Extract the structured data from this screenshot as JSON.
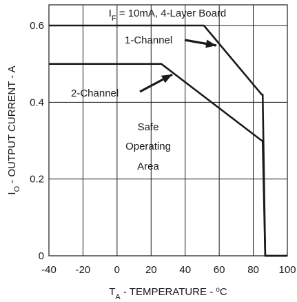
{
  "chart_data": {
    "type": "line",
    "title": "I_F = 10mA, 4-Layer Board",
    "title_parts": {
      "base": "I",
      "sub": "F",
      "rest": " = 10mA, 4-Layer Board"
    },
    "xlabel": "T_A - TEMPERATURE - ºC",
    "xlabel_parts": {
      "base": "T",
      "sub": "A",
      "rest_a": " - TEMPERATURE - ",
      "sup": "o",
      "rest_b": "C"
    },
    "ylabel": "I_O - OUTPUT CURRENT - A",
    "ylabel_parts": {
      "base": "I",
      "sub": "O",
      "rest": " - OUTPUT CURRENT - A"
    },
    "xlim": [
      -40,
      100
    ],
    "ylim": [
      0,
      0.65
    ],
    "x_ticks": [
      -40,
      -20,
      0,
      20,
      40,
      60,
      80,
      100
    ],
    "x_tick_labels": [
      "-40",
      "-20",
      "0",
      "20",
      "40",
      "60",
      "80",
      "100"
    ],
    "y_ticks": [
      0,
      0.2,
      0.4,
      0.6
    ],
    "y_tick_labels": [
      "0",
      "0.2",
      "0.4",
      "0.6"
    ],
    "grid": true,
    "series": [
      {
        "name": "1-Channel",
        "x": [
          -40,
          51,
          85,
          85.5,
          87,
          100
        ],
        "y": [
          0.6,
          0.6,
          0.42,
          0.42,
          0,
          0
        ]
      },
      {
        "name": "2-Channel",
        "x": [
          -40,
          26,
          85,
          85.5,
          87,
          100
        ],
        "y": [
          0.5,
          0.5,
          0.3,
          0.3,
          0,
          0
        ]
      }
    ],
    "annotations": {
      "one_channel": "1-Channel",
      "two_channel": "2-Channel",
      "safe_area": [
        "Safe",
        "Operating",
        "Area"
      ]
    }
  }
}
